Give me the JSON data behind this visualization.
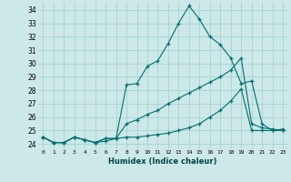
{
  "xlabel": "Humidex (Indice chaleur)",
  "ylabel": "",
  "bg_color": "#cde8e8",
  "grid_color": "#9ecece",
  "line_color": "#007070",
  "xlim": [
    -0.5,
    23.5
  ],
  "ylim": [
    23.6,
    34.6
  ],
  "yticks": [
    24,
    25,
    26,
    27,
    28,
    29,
    30,
    31,
    32,
    33,
    34
  ],
  "xticks": [
    0,
    1,
    2,
    3,
    4,
    5,
    6,
    7,
    8,
    9,
    10,
    11,
    12,
    13,
    14,
    15,
    16,
    17,
    18,
    19,
    20,
    21,
    22,
    23
  ],
  "series1_x": [
    0,
    1,
    2,
    3,
    4,
    5,
    6,
    7,
    8,
    9,
    10,
    11,
    12,
    13,
    14,
    15,
    16,
    17,
    18,
    19,
    20,
    21,
    22,
    23
  ],
  "series1_y": [
    24.5,
    24.1,
    24.1,
    24.5,
    24.3,
    24.1,
    24.2,
    24.4,
    28.4,
    28.5,
    29.8,
    30.2,
    31.5,
    33.0,
    34.3,
    33.3,
    32.0,
    31.4,
    30.4,
    28.5,
    28.7,
    25.5,
    25.0,
    25.1
  ],
  "series2_x": [
    0,
    1,
    2,
    3,
    4,
    5,
    6,
    7,
    8,
    9,
    10,
    11,
    12,
    13,
    14,
    15,
    16,
    17,
    18,
    19,
    20,
    21,
    22,
    23
  ],
  "series2_y": [
    24.5,
    24.1,
    24.1,
    24.5,
    24.3,
    24.1,
    24.4,
    24.4,
    24.5,
    24.5,
    24.6,
    24.7,
    24.8,
    25.0,
    25.2,
    25.5,
    26.0,
    26.5,
    27.2,
    28.1,
    25.0,
    25.0,
    25.0,
    25.0
  ],
  "series3_x": [
    0,
    1,
    2,
    3,
    4,
    5,
    6,
    7,
    8,
    9,
    10,
    11,
    12,
    13,
    14,
    15,
    16,
    17,
    18,
    19,
    20,
    21,
    22,
    23
  ],
  "series3_y": [
    24.5,
    24.1,
    24.1,
    24.5,
    24.3,
    24.1,
    24.4,
    24.4,
    25.5,
    25.8,
    26.2,
    26.5,
    27.0,
    27.4,
    27.8,
    28.2,
    28.6,
    29.0,
    29.5,
    30.4,
    25.5,
    25.2,
    25.1,
    25.0
  ]
}
